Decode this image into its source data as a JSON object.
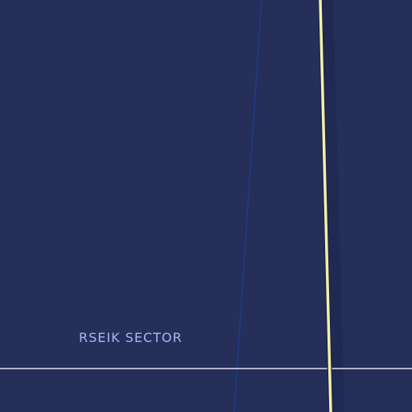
{
  "map": {
    "background_color": "#252f5a",
    "sector_label": "RSEIK SECTOR",
    "label_color": "#a9b6f2",
    "colors": {
      "major_route": "#f3efaa",
      "major_route_shadow": "#1c2449",
      "minor_route": "#1f3a8a",
      "boundary": "#b3b2c9"
    }
  }
}
